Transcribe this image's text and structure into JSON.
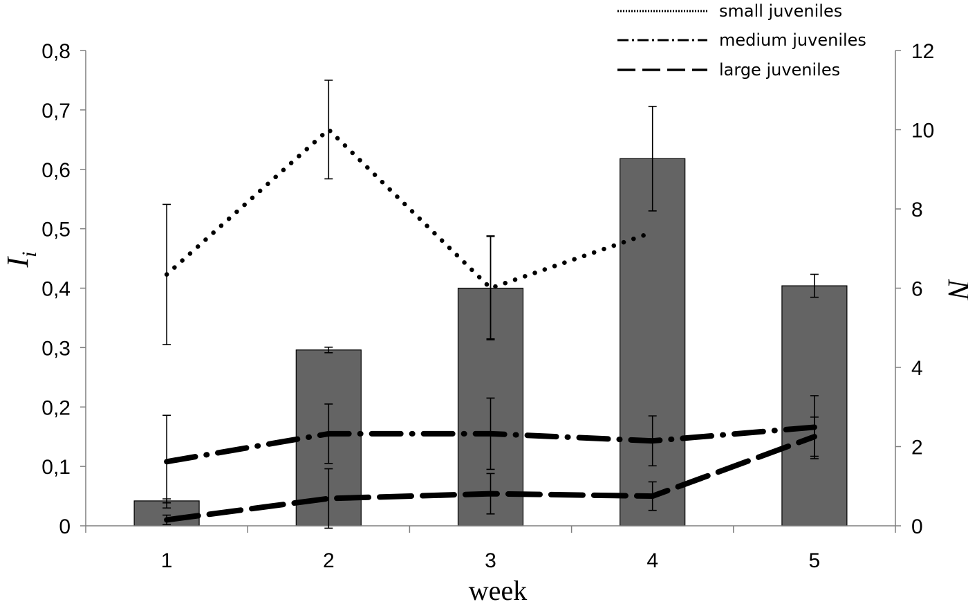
{
  "chart_data": {
    "type": "bar",
    "title": "",
    "xlabel": "week",
    "ylabel": "I",
    "ylabel_subscript": "i",
    "y2label": "N",
    "x": [
      1,
      2,
      3,
      4,
      5
    ],
    "x_tick_labels": [
      "1",
      "2",
      "3",
      "4",
      "5"
    ],
    "ylim": [
      0,
      0.8
    ],
    "y_ticks": [
      0,
      0.1,
      0.2,
      0.3,
      0.4,
      0.5,
      0.6,
      0.7,
      0.8
    ],
    "y_tick_labels": [
      "0",
      "0,1",
      "0,2",
      "0,3",
      "0,4",
      "0,5",
      "0,6",
      "0,7",
      "0,8"
    ],
    "y2lim": [
      0,
      12
    ],
    "y2_ticks": [
      0,
      2,
      4,
      6,
      8,
      10,
      12
    ],
    "y2_tick_labels": [
      "0",
      "2",
      "4",
      "6",
      "8",
      "10",
      "12"
    ],
    "bars": {
      "axis": "right",
      "color": "#646464",
      "values": [
        0.63,
        4.44,
        6.0,
        9.27,
        6.06
      ],
      "err_low": [
        0.05,
        0.07,
        1.28,
        1.32,
        0.29
      ],
      "err_high": [
        0.05,
        0.07,
        1.32,
        1.32,
        0.29
      ]
    },
    "series": [
      {
        "name": "small juveniles",
        "style": "dotted",
        "axis": "left",
        "x": [
          1,
          2,
          3,
          4
        ],
        "values": [
          0.423,
          0.667,
          0.4,
          0.494
        ],
        "err_low": [
          0.118,
          0.083,
          0.087,
          0.0
        ],
        "err_high": [
          0.118,
          0.083,
          0.087,
          0.0
        ]
      },
      {
        "name": "medium juveniles",
        "style": "dashdot",
        "axis": "left",
        "x": [
          1,
          2,
          3,
          4,
          5
        ],
        "values": [
          0.108,
          0.155,
          0.155,
          0.143,
          0.166
        ],
        "err_low": [
          0.078,
          0.05,
          0.06,
          0.042,
          0.053
        ],
        "err_high": [
          0.078,
          0.05,
          0.06,
          0.042,
          0.053
        ]
      },
      {
        "name": "large juveniles",
        "style": "dashed",
        "axis": "left",
        "x": [
          1,
          2,
          3,
          4,
          5
        ],
        "values": [
          0.01,
          0.046,
          0.054,
          0.05,
          0.15
        ],
        "err_low": [
          0.008,
          0.05,
          0.034,
          0.024,
          0.033
        ],
        "err_high": [
          0.008,
          0.05,
          0.034,
          0.024,
          0.033
        ]
      }
    ],
    "legend": {
      "position": "top-right",
      "entries": [
        "small juveniles",
        "medium juveniles",
        "large juveniles"
      ]
    }
  }
}
